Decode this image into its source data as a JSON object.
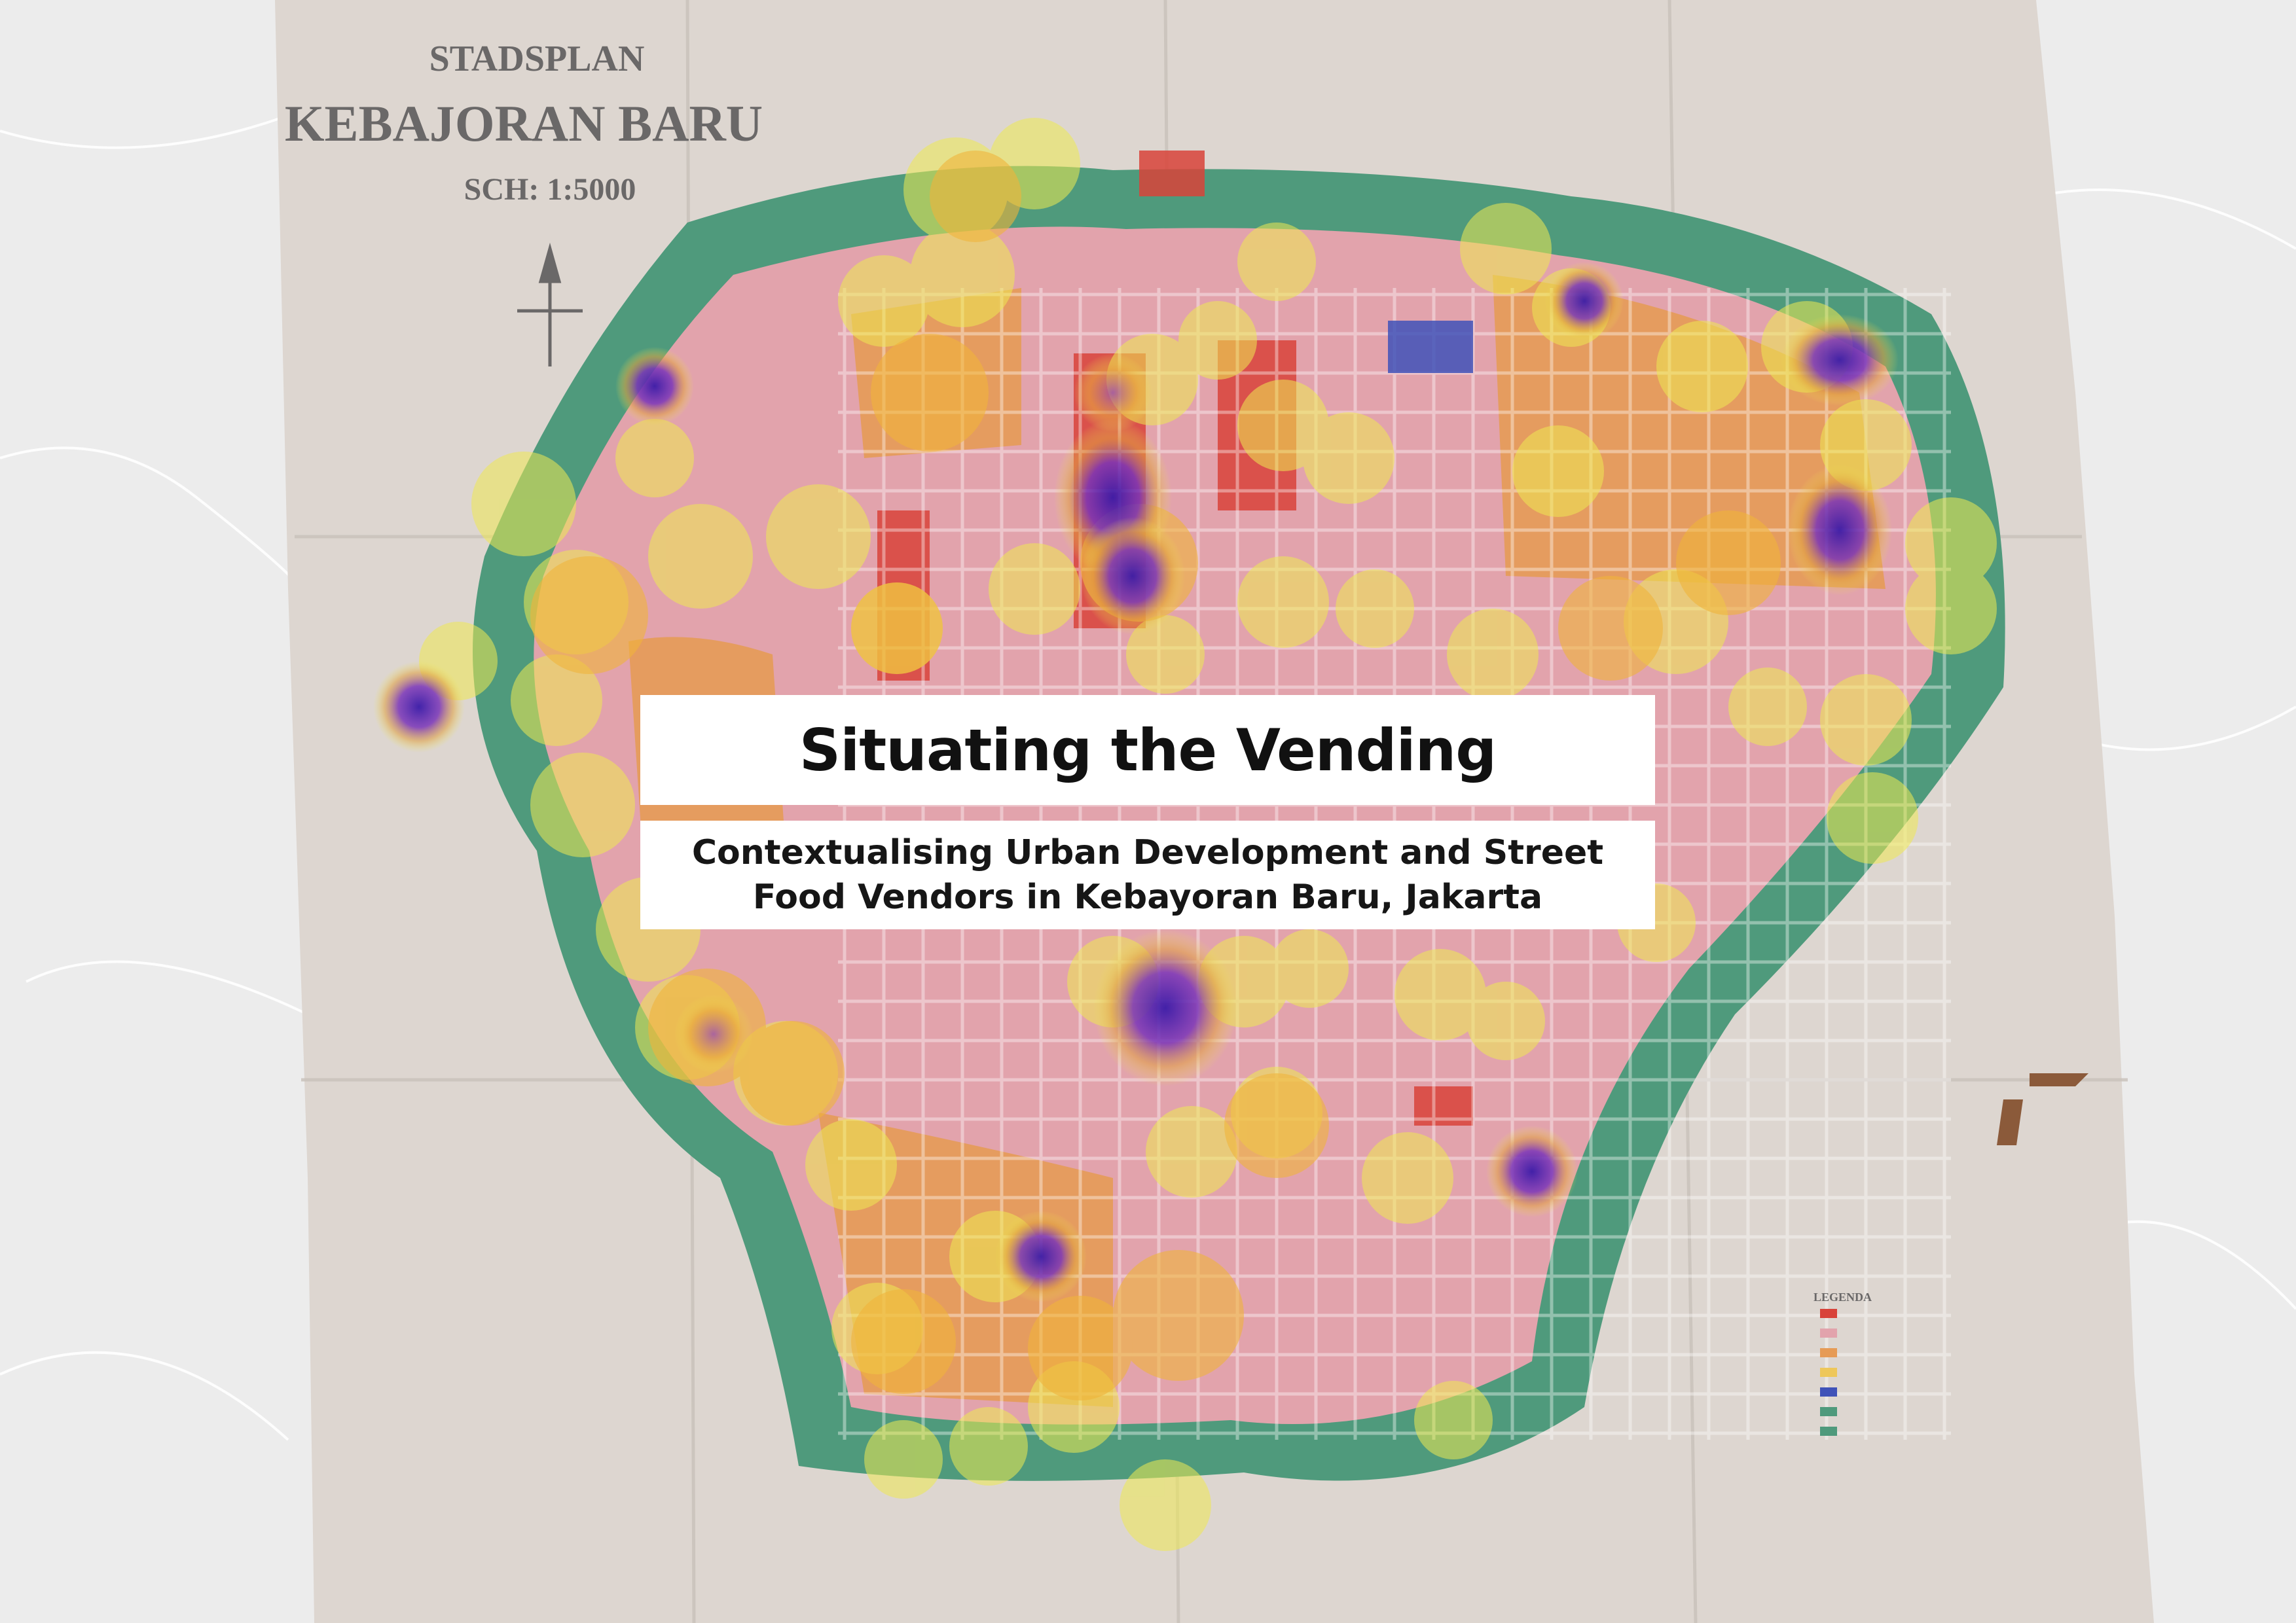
{
  "title": "Situating the Vending",
  "subtitle": {
    "line1": "Contextualising Urban Development and Street",
    "line2": "Food Vendors in Kebayoran Baru, Jakarta"
  },
  "map_lettering": {
    "heading": "STADSPLAN",
    "name": "KEBAJORAN BARU",
    "scale": "SCH: 1:5000",
    "legend_title": "LEGENDA"
  },
  "colors": {
    "paper": "#ddd6d0",
    "background": "#ececec",
    "green_belt": "#4f9a7c",
    "residential_pink": "#e2a3ac",
    "residential_orange": "#e69b56",
    "commercial_red": "#d8433a",
    "heat_yellow": "#eeea52",
    "heat_orange": "#f0b43a",
    "heat_purple": "#6a2ab6"
  },
  "heatmap_hotspots": [
    {
      "area": "north-central corridor",
      "intensity": "high"
    },
    {
      "area": "south-central",
      "intensity": "high"
    },
    {
      "area": "north-east",
      "intensity": "high"
    },
    {
      "area": "east",
      "intensity": "high"
    },
    {
      "area": "north-east upper",
      "intensity": "medium"
    },
    {
      "area": "north-west",
      "intensity": "medium"
    },
    {
      "area": "west edge",
      "intensity": "medium"
    },
    {
      "area": "south-east",
      "intensity": "medium"
    },
    {
      "area": "south",
      "intensity": "medium"
    }
  ]
}
